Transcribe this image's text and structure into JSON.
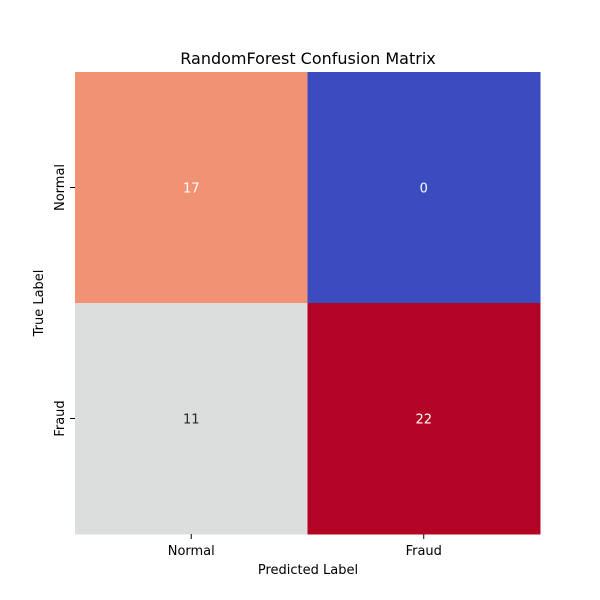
{
  "chart_data": {
    "type": "heatmap",
    "title": "RandomForest Confusion Matrix",
    "xlabel": "Predicted Label",
    "ylabel": "True Label",
    "x_categories": [
      "Normal",
      "Fraud"
    ],
    "y_categories": [
      "Normal",
      "Fraud"
    ],
    "values": [
      [
        17,
        0
      ],
      [
        11,
        22
      ]
    ],
    "colormap": "coolwarm",
    "colorbar": false,
    "grid": false,
    "cell_colors": [
      [
        "#f29274",
        "#3b4cc0"
      ],
      [
        "#dcdddd",
        "#b40426"
      ]
    ],
    "cell_text_colors": [
      [
        "#ffffff",
        "#ffffff"
      ],
      [
        "#262626",
        "#ffffff"
      ]
    ]
  }
}
